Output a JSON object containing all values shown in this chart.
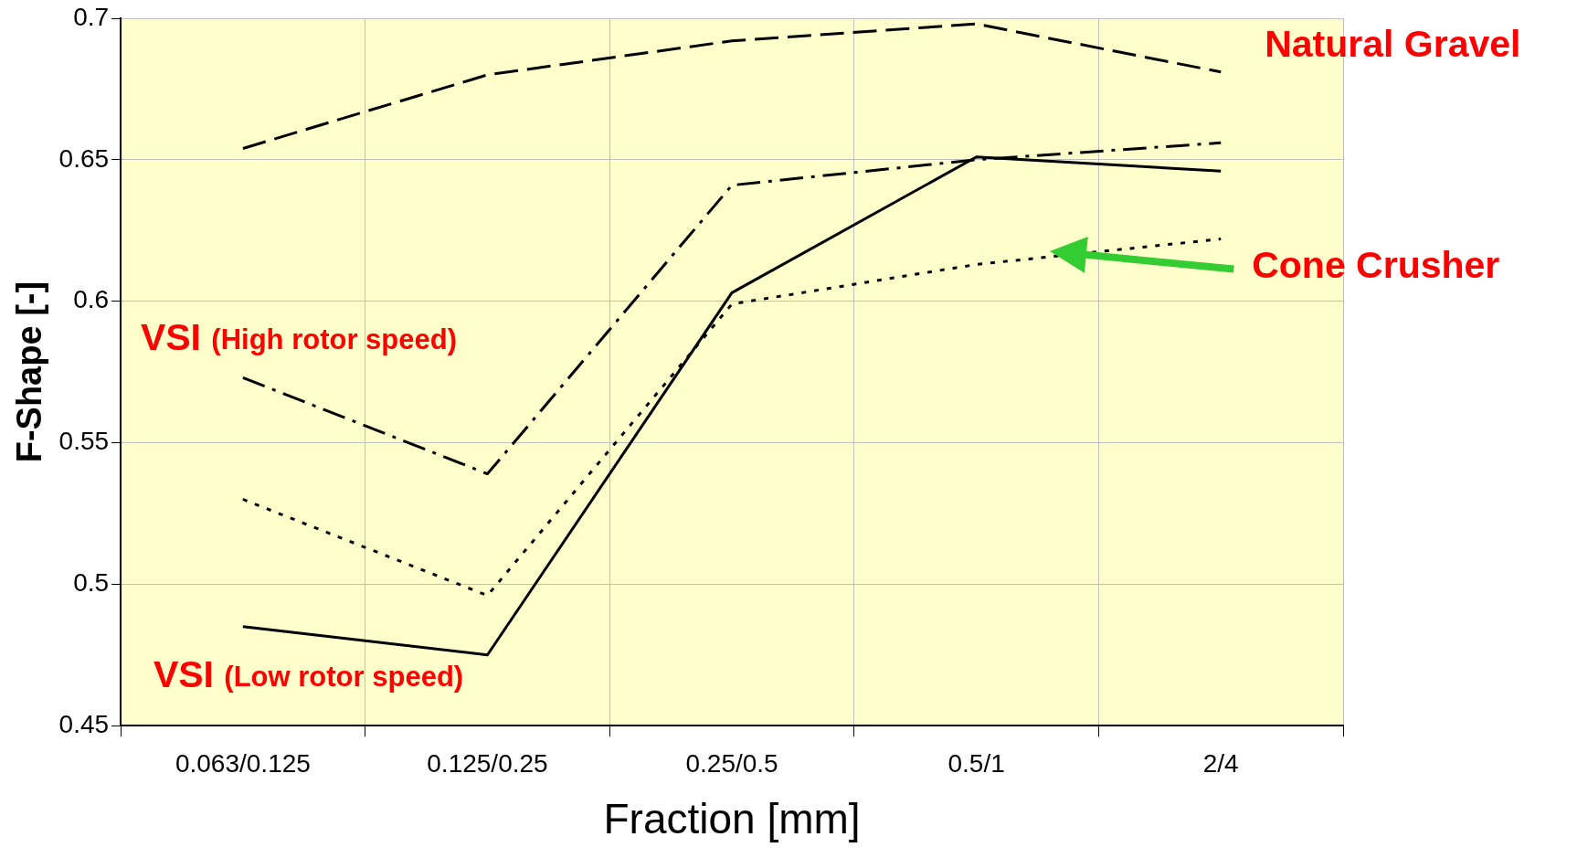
{
  "chart_data": {
    "type": "line",
    "xlabel": "Fraction [mm]",
    "ylabel": "F-Shape [-]",
    "categories": [
      "0.063/0.125",
      "0.125/0.25",
      "0.25/0.5",
      "0.5/1",
      "2/4"
    ],
    "series": [
      {
        "name": "Natural Gravel",
        "color": "#000000",
        "line_style": "dashed",
        "values": [
          0.654,
          0.68,
          0.692,
          0.698,
          0.681
        ]
      },
      {
        "name": "VSI (High rotor speed)",
        "color": "#000000",
        "line_style": "dashdot",
        "values": [
          0.573,
          0.539,
          0.641,
          0.65,
          0.656
        ]
      },
      {
        "name": "VSI (Low rotor speed)",
        "color": "#000000",
        "line_style": "solid",
        "values": [
          0.485,
          0.475,
          0.603,
          0.651,
          0.646
        ]
      },
      {
        "name": "Cone Crusher",
        "color": "#000000",
        "line_style": "dotted",
        "values": [
          0.53,
          0.496,
          0.599,
          0.613,
          0.622
        ]
      }
    ],
    "ylim": [
      0.45,
      0.7
    ],
    "yticks": [
      0.45,
      0.5,
      0.55,
      0.6,
      0.65,
      0.7
    ],
    "grid": true,
    "legend": false,
    "marker": "none"
  }
}
